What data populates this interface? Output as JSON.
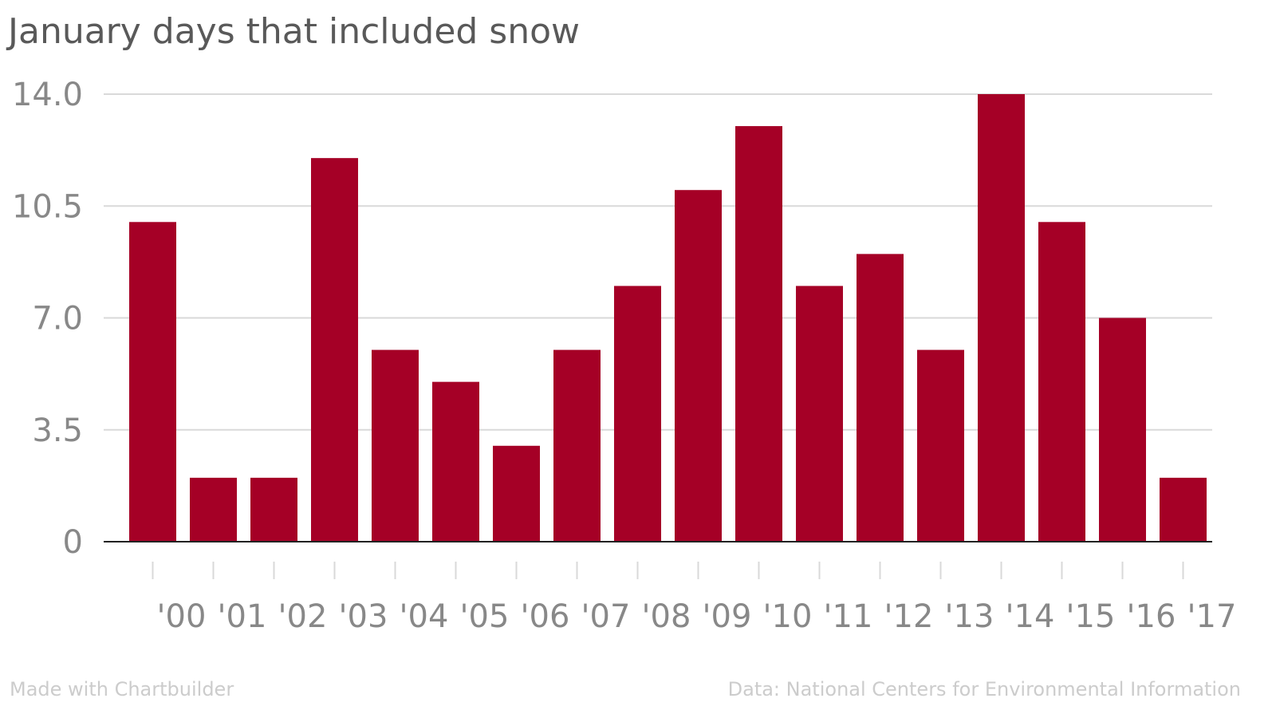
{
  "title": "January days that included snow",
  "footer": {
    "left": "Made with Chartbuilder",
    "right": "Data: National Centers for Environmental Information"
  },
  "colors": {
    "bar": "#a50026",
    "grid": "#d9d9d9",
    "axis": "#222222",
    "text": "#888888"
  },
  "chart_data": {
    "type": "bar",
    "title": "January days that included snow",
    "xlabel": "",
    "ylabel": "",
    "categories": [
      "'00",
      "'01",
      "'02",
      "'03",
      "'04",
      "'05",
      "'06",
      "'07",
      "'08",
      "'09",
      "'10",
      "'11",
      "'12",
      "'13",
      "'14",
      "'15",
      "'16",
      "'17"
    ],
    "values": [
      10,
      2,
      2,
      12,
      6,
      5,
      3,
      6,
      8,
      11,
      13,
      8,
      9,
      6,
      14,
      10,
      7,
      2
    ],
    "ylim": [
      0,
      14
    ],
    "yticks": [
      "0",
      "3.5",
      "7.0",
      "10.5",
      "14.0"
    ],
    "grid": true
  }
}
